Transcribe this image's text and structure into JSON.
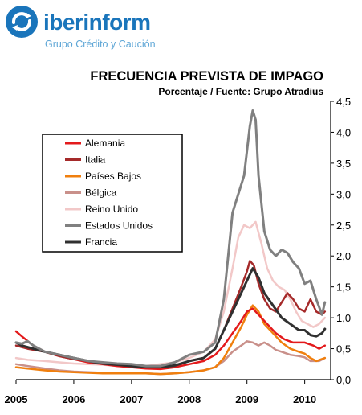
{
  "brand": {
    "name_bold": "iber",
    "name_rest": "inform",
    "subtitle": "Grupo Crédito y Caución"
  },
  "chart_data": {
    "type": "line",
    "title": "FRECUENCIA PREVISTA DE IMPAGO",
    "subtitle": "Porcentaje / Fuente: Grupo Atradius",
    "xlabel": "",
    "ylabel": "",
    "ylim": [
      0,
      4.5
    ],
    "xlim": [
      2005.0,
      2010.45
    ],
    "y_ticks": [
      "0,0",
      "0,5",
      "1,0",
      "1,5",
      "2,0",
      "2,5",
      "3,0",
      "3,5",
      "4,0",
      "4,5"
    ],
    "x_ticks": [
      "2005",
      "2006",
      "2007",
      "2008",
      "2009",
      "2010"
    ],
    "y_axis_side": "right",
    "grid": false,
    "legend_position": "upper-left",
    "series": [
      {
        "name": "Alemania",
        "color": "#e31a1c",
        "width": 2.5,
        "points": [
          [
            2005.0,
            0.78
          ],
          [
            2005.1,
            0.7
          ],
          [
            2005.3,
            0.55
          ],
          [
            2005.5,
            0.45
          ],
          [
            2005.75,
            0.38
          ],
          [
            2006.0,
            0.33
          ],
          [
            2006.25,
            0.28
          ],
          [
            2006.5,
            0.25
          ],
          [
            2006.75,
            0.22
          ],
          [
            2007.0,
            0.2
          ],
          [
            2007.25,
            0.18
          ],
          [
            2007.5,
            0.17
          ],
          [
            2007.75,
            0.2
          ],
          [
            2008.0,
            0.25
          ],
          [
            2008.25,
            0.3
          ],
          [
            2008.45,
            0.4
          ],
          [
            2008.6,
            0.55
          ],
          [
            2008.75,
            0.75
          ],
          [
            2008.9,
            0.95
          ],
          [
            2009.0,
            1.1
          ],
          [
            2009.1,
            1.15
          ],
          [
            2009.2,
            1.05
          ],
          [
            2009.35,
            0.9
          ],
          [
            2009.5,
            0.75
          ],
          [
            2009.65,
            0.65
          ],
          [
            2009.8,
            0.6
          ],
          [
            2010.0,
            0.6
          ],
          [
            2010.15,
            0.55
          ],
          [
            2010.25,
            0.5
          ],
          [
            2010.35,
            0.55
          ]
        ]
      },
      {
        "name": "Italia",
        "color": "#a52a2a",
        "width": 2.5,
        "points": [
          [
            2005.0,
            0.55
          ],
          [
            2005.2,
            0.5
          ],
          [
            2005.5,
            0.45
          ],
          [
            2005.75,
            0.38
          ],
          [
            2006.0,
            0.33
          ],
          [
            2006.25,
            0.3
          ],
          [
            2006.5,
            0.27
          ],
          [
            2006.75,
            0.24
          ],
          [
            2007.0,
            0.22
          ],
          [
            2007.25,
            0.2
          ],
          [
            2007.5,
            0.2
          ],
          [
            2007.75,
            0.22
          ],
          [
            2008.0,
            0.3
          ],
          [
            2008.25,
            0.35
          ],
          [
            2008.45,
            0.5
          ],
          [
            2008.6,
            0.8
          ],
          [
            2008.75,
            1.15
          ],
          [
            2008.9,
            1.5
          ],
          [
            2009.0,
            1.75
          ],
          [
            2009.05,
            1.92
          ],
          [
            2009.12,
            1.85
          ],
          [
            2009.2,
            1.55
          ],
          [
            2009.3,
            1.3
          ],
          [
            2009.4,
            1.15
          ],
          [
            2009.5,
            1.1
          ],
          [
            2009.6,
            1.25
          ],
          [
            2009.7,
            1.4
          ],
          [
            2009.8,
            1.3
          ],
          [
            2009.9,
            1.15
          ],
          [
            2010.0,
            1.1
          ],
          [
            2010.1,
            1.3
          ],
          [
            2010.2,
            1.1
          ],
          [
            2010.3,
            1.05
          ],
          [
            2010.35,
            1.1
          ]
        ]
      },
      {
        "name": "Países Bajos",
        "color": "#f07f0e",
        "width": 2.5,
        "points": [
          [
            2005.0,
            0.2
          ],
          [
            2005.2,
            0.18
          ],
          [
            2005.5,
            0.15
          ],
          [
            2005.75,
            0.13
          ],
          [
            2006.0,
            0.12
          ],
          [
            2006.25,
            0.11
          ],
          [
            2006.5,
            0.1
          ],
          [
            2006.75,
            0.1
          ],
          [
            2007.0,
            0.1
          ],
          [
            2007.25,
            0.1
          ],
          [
            2007.5,
            0.09
          ],
          [
            2007.75,
            0.1
          ],
          [
            2008.0,
            0.12
          ],
          [
            2008.25,
            0.15
          ],
          [
            2008.45,
            0.2
          ],
          [
            2008.6,
            0.35
          ],
          [
            2008.75,
            0.6
          ],
          [
            2008.9,
            0.85
          ],
          [
            2009.0,
            1.05
          ],
          [
            2009.1,
            1.2
          ],
          [
            2009.2,
            1.1
          ],
          [
            2009.3,
            0.9
          ],
          [
            2009.45,
            0.75
          ],
          [
            2009.6,
            0.6
          ],
          [
            2009.75,
            0.5
          ],
          [
            2009.9,
            0.45
          ],
          [
            2010.0,
            0.42
          ],
          [
            2010.1,
            0.35
          ],
          [
            2010.2,
            0.3
          ],
          [
            2010.35,
            0.35
          ]
        ]
      },
      {
        "name": "Bélgica",
        "color": "#c9908a",
        "width": 2.5,
        "points": [
          [
            2005.0,
            0.25
          ],
          [
            2005.2,
            0.22
          ],
          [
            2005.5,
            0.18
          ],
          [
            2005.75,
            0.15
          ],
          [
            2006.0,
            0.13
          ],
          [
            2006.25,
            0.12
          ],
          [
            2006.5,
            0.11
          ],
          [
            2006.75,
            0.1
          ],
          [
            2007.0,
            0.1
          ],
          [
            2007.25,
            0.1
          ],
          [
            2007.5,
            0.09
          ],
          [
            2007.75,
            0.1
          ],
          [
            2008.0,
            0.12
          ],
          [
            2008.25,
            0.15
          ],
          [
            2008.45,
            0.2
          ],
          [
            2008.6,
            0.3
          ],
          [
            2008.75,
            0.45
          ],
          [
            2008.9,
            0.55
          ],
          [
            2009.0,
            0.62
          ],
          [
            2009.1,
            0.6
          ],
          [
            2009.2,
            0.55
          ],
          [
            2009.3,
            0.6
          ],
          [
            2009.4,
            0.55
          ],
          [
            2009.5,
            0.48
          ],
          [
            2009.6,
            0.45
          ],
          [
            2009.75,
            0.4
          ],
          [
            2009.9,
            0.38
          ],
          [
            2010.0,
            0.36
          ],
          [
            2010.1,
            0.3
          ],
          [
            2010.25,
            0.3
          ],
          [
            2010.35,
            0.35
          ]
        ]
      },
      {
        "name": "Reino Unido",
        "color": "#f2c8c8",
        "width": 2.5,
        "points": [
          [
            2005.0,
            0.35
          ],
          [
            2005.2,
            0.32
          ],
          [
            2005.5,
            0.3
          ],
          [
            2005.75,
            0.28
          ],
          [
            2006.0,
            0.26
          ],
          [
            2006.25,
            0.25
          ],
          [
            2006.5,
            0.24
          ],
          [
            2006.75,
            0.22
          ],
          [
            2007.0,
            0.22
          ],
          [
            2007.25,
            0.22
          ],
          [
            2007.5,
            0.25
          ],
          [
            2007.75,
            0.28
          ],
          [
            2008.0,
            0.35
          ],
          [
            2008.25,
            0.45
          ],
          [
            2008.45,
            0.65
          ],
          [
            2008.6,
            1.1
          ],
          [
            2008.75,
            1.8
          ],
          [
            2008.85,
            2.3
          ],
          [
            2008.95,
            2.5
          ],
          [
            2009.05,
            2.45
          ],
          [
            2009.15,
            2.55
          ],
          [
            2009.25,
            2.2
          ],
          [
            2009.35,
            1.8
          ],
          [
            2009.45,
            1.6
          ],
          [
            2009.55,
            1.5
          ],
          [
            2009.65,
            1.45
          ],
          [
            2009.75,
            1.3
          ],
          [
            2009.85,
            1.1
          ],
          [
            2009.95,
            0.95
          ],
          [
            2010.05,
            0.9
          ],
          [
            2010.15,
            0.85
          ],
          [
            2010.25,
            0.9
          ],
          [
            2010.35,
            1.0
          ]
        ]
      },
      {
        "name": "Estados Unidos",
        "color": "#808080",
        "width": 3,
        "points": [
          [
            2005.0,
            0.6
          ],
          [
            2005.1,
            0.58
          ],
          [
            2005.2,
            0.62
          ],
          [
            2005.3,
            0.55
          ],
          [
            2005.5,
            0.45
          ],
          [
            2005.75,
            0.4
          ],
          [
            2006.0,
            0.35
          ],
          [
            2006.25,
            0.3
          ],
          [
            2006.5,
            0.28
          ],
          [
            2006.75,
            0.26
          ],
          [
            2007.0,
            0.25
          ],
          [
            2007.25,
            0.22
          ],
          [
            2007.5,
            0.22
          ],
          [
            2007.75,
            0.28
          ],
          [
            2008.0,
            0.4
          ],
          [
            2008.25,
            0.45
          ],
          [
            2008.45,
            0.6
          ],
          [
            2008.6,
            1.3
          ],
          [
            2008.75,
            2.7
          ],
          [
            2008.85,
            3.0
          ],
          [
            2008.95,
            3.3
          ],
          [
            2009.05,
            4.1
          ],
          [
            2009.1,
            4.35
          ],
          [
            2009.15,
            4.2
          ],
          [
            2009.2,
            3.3
          ],
          [
            2009.3,
            2.4
          ],
          [
            2009.4,
            2.1
          ],
          [
            2009.5,
            2.0
          ],
          [
            2009.6,
            2.1
          ],
          [
            2009.7,
            2.05
          ],
          [
            2009.8,
            1.9
          ],
          [
            2009.9,
            1.8
          ],
          [
            2010.0,
            1.55
          ],
          [
            2010.1,
            1.6
          ],
          [
            2010.2,
            1.3
          ],
          [
            2010.3,
            1.05
          ],
          [
            2010.35,
            1.25
          ]
        ]
      },
      {
        "name": "Francia",
        "color": "#303030",
        "width": 3,
        "points": [
          [
            2005.0,
            0.6
          ],
          [
            2005.1,
            0.55
          ],
          [
            2005.3,
            0.5
          ],
          [
            2005.5,
            0.45
          ],
          [
            2005.75,
            0.4
          ],
          [
            2006.0,
            0.35
          ],
          [
            2006.25,
            0.3
          ],
          [
            2006.5,
            0.26
          ],
          [
            2006.75,
            0.24
          ],
          [
            2007.0,
            0.22
          ],
          [
            2007.25,
            0.2
          ],
          [
            2007.5,
            0.2
          ],
          [
            2007.75,
            0.23
          ],
          [
            2008.0,
            0.3
          ],
          [
            2008.25,
            0.35
          ],
          [
            2008.45,
            0.5
          ],
          [
            2008.6,
            0.8
          ],
          [
            2008.75,
            1.1
          ],
          [
            2008.9,
            1.4
          ],
          [
            2009.0,
            1.6
          ],
          [
            2009.1,
            1.8
          ],
          [
            2009.2,
            1.65
          ],
          [
            2009.3,
            1.4
          ],
          [
            2009.45,
            1.2
          ],
          [
            2009.6,
            1.0
          ],
          [
            2009.75,
            0.9
          ],
          [
            2009.9,
            0.8
          ],
          [
            2010.0,
            0.8
          ],
          [
            2010.1,
            0.72
          ],
          [
            2010.2,
            0.7
          ],
          [
            2010.3,
            0.75
          ],
          [
            2010.35,
            0.82
          ]
        ]
      }
    ]
  }
}
